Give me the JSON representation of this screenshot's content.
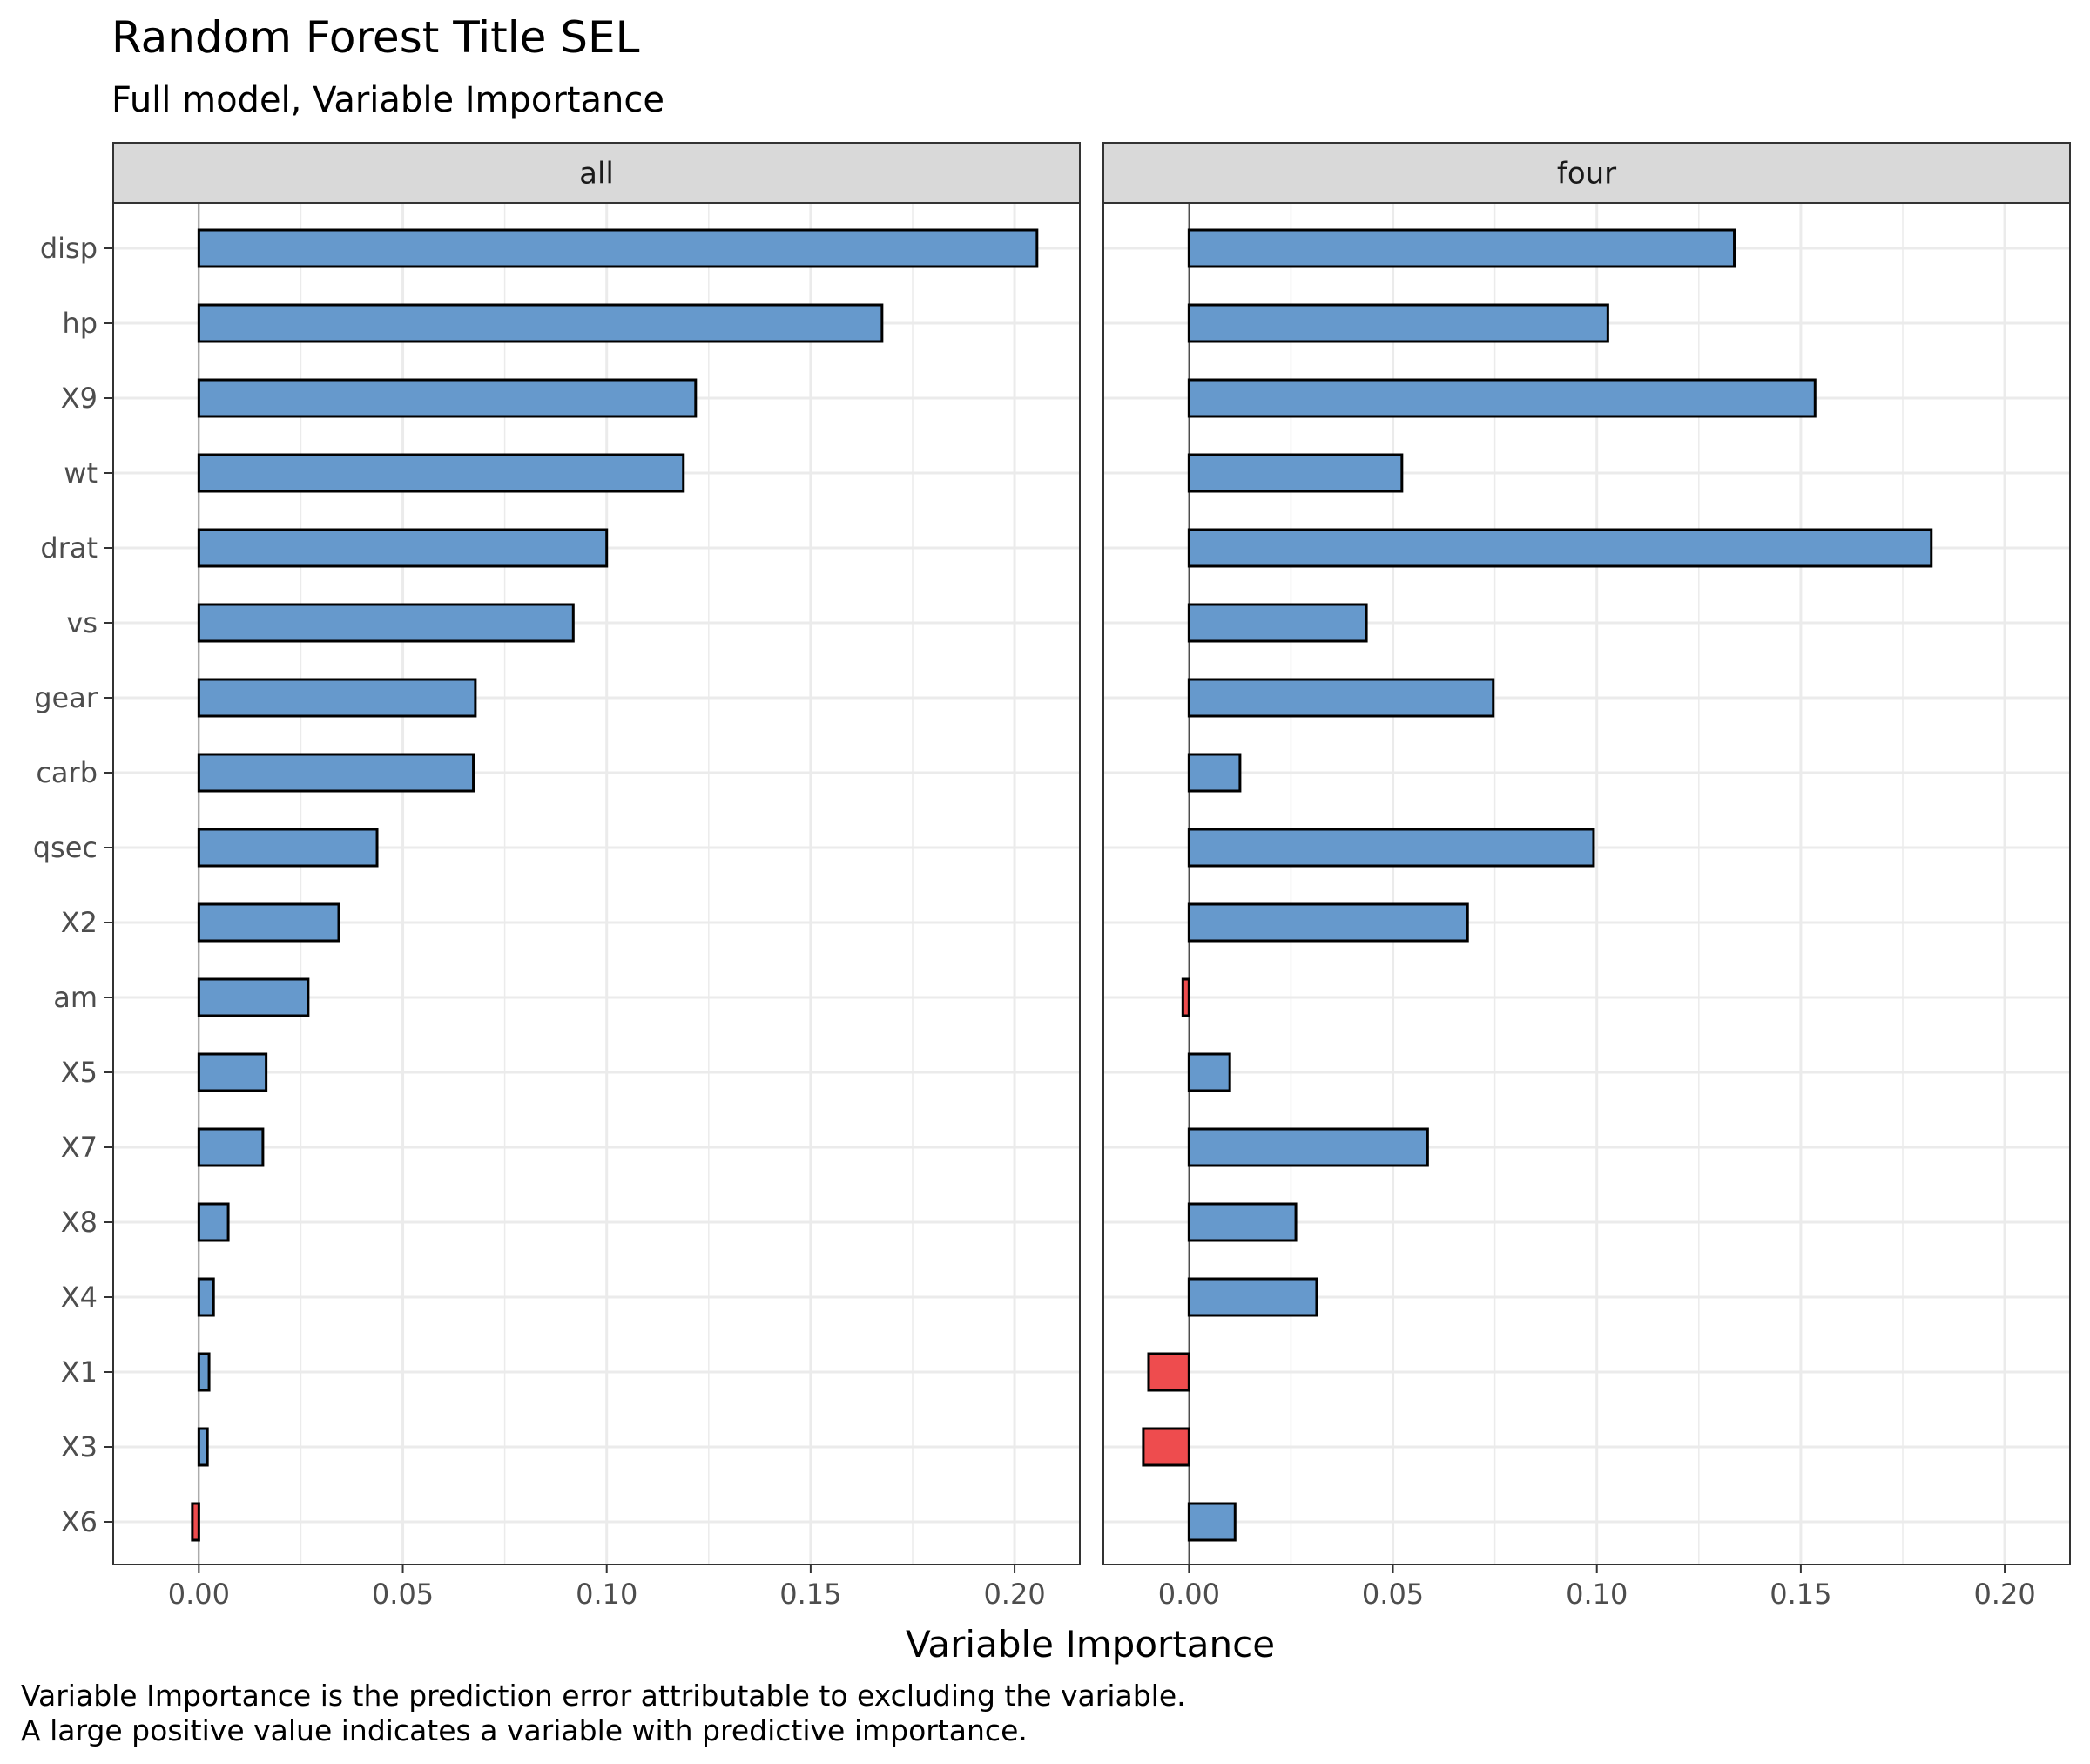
{
  "chart_data": {
    "type": "bar",
    "orientation": "horizontal",
    "title": "Random Forest Title SEL",
    "subtitle": "Full model, Variable Importance",
    "xlabel": "Variable Importance",
    "ylabel": "",
    "caption": [
      "Variable Importance is the prediction error attributable to excluding the variable.",
      "A large positive value indicates a variable with predictive importance."
    ],
    "xlim": [
      -0.021,
      0.216
    ],
    "xticks": [
      0.0,
      0.05,
      0.1,
      0.15,
      0.2
    ],
    "xtick_labels": [
      "0.00",
      "0.05",
      "0.10",
      "0.15",
      "0.20"
    ],
    "grid": true,
    "categories": [
      "disp",
      "hp",
      "X9",
      "wt",
      "drat",
      "vs",
      "gear",
      "carb",
      "qsec",
      "X2",
      "am",
      "X5",
      "X7",
      "X8",
      "X4",
      "X1",
      "X3",
      "X6"
    ],
    "colors": {
      "positive": "#6699cc",
      "negative": "#ee4c4e",
      "bar_outline": "#000000",
      "strip_fill": "#d9d9d9",
      "grid": "#ebebeb",
      "panel_border": "#333333"
    },
    "facets": [
      {
        "name": "all",
        "values": [
          0.2055,
          0.1675,
          0.1218,
          0.1188,
          0.1,
          0.0918,
          0.0678,
          0.0673,
          0.0437,
          0.0343,
          0.0268,
          0.0165,
          0.0157,
          0.0072,
          0.0036,
          0.0025,
          0.0021,
          -0.0016
        ]
      },
      {
        "name": "four",
        "values": [
          0.1337,
          0.1027,
          0.1535,
          0.0522,
          0.182,
          0.0435,
          0.0746,
          0.0125,
          0.0992,
          0.0683,
          -0.0015,
          0.01,
          0.0585,
          0.0262,
          0.0313,
          -0.0099,
          -0.0112,
          0.0113
        ]
      }
    ]
  }
}
